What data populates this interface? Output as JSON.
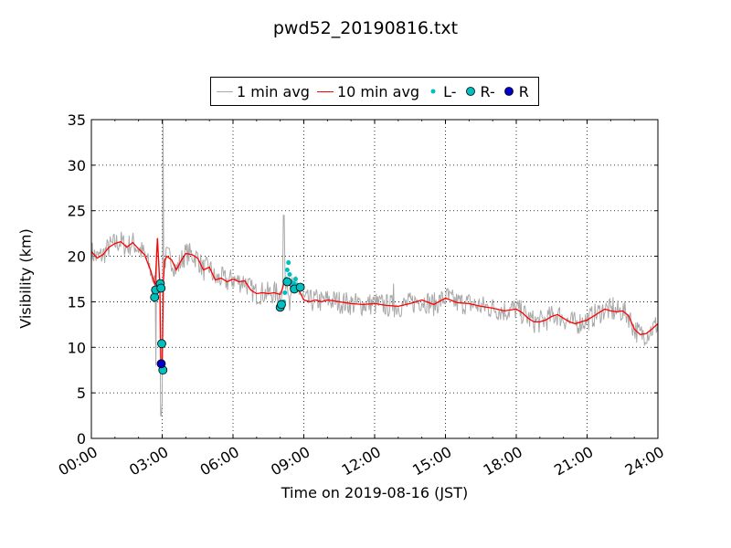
{
  "chart_data": {
    "type": "line",
    "title": "pwd52_20190816.txt",
    "xlabel": "Time on 2019-08-16 (JST)",
    "ylabel": "Visibility (km)",
    "xlim_hours": [
      0,
      24
    ],
    "ylim": [
      0,
      35
    ],
    "x_ticks": [
      "00:00",
      "03:00",
      "06:00",
      "09:00",
      "12:00",
      "15:00",
      "18:00",
      "21:00",
      "24:00"
    ],
    "y_ticks": [
      "0",
      "5",
      "10",
      "15",
      "20",
      "25",
      "30",
      "35"
    ],
    "grid": true,
    "legend_position": "top-center",
    "series": [
      {
        "name": "1 min avg",
        "type": "line",
        "color": "#a9a9a9"
      },
      {
        "name": "10 min avg",
        "type": "line",
        "color": "#ff0000",
        "x_hours": [
          0,
          0.25,
          0.5,
          0.75,
          1,
          1.25,
          1.5,
          1.75,
          2,
          2.25,
          2.5,
          2.7,
          2.8,
          2.9,
          2.95,
          3.0,
          3.05,
          3.1,
          3.2,
          3.4,
          3.6,
          3.8,
          4.0,
          4.25,
          4.5,
          4.75,
          5,
          5.25,
          5.5,
          5.75,
          6,
          6.25,
          6.5,
          6.75,
          7,
          7.25,
          7.5,
          7.75,
          8,
          8.1,
          8.2,
          8.3,
          8.4,
          8.5,
          8.6,
          8.75,
          9,
          9.25,
          9.5,
          9.75,
          10,
          10.5,
          11,
          11.5,
          12,
          12.5,
          13,
          13.5,
          14,
          14.5,
          15,
          15.5,
          16,
          16.5,
          17,
          17.5,
          18,
          18.25,
          18.5,
          18.75,
          19,
          19.25,
          19.5,
          19.75,
          20,
          20.25,
          20.5,
          20.75,
          21,
          21.25,
          21.5,
          21.75,
          22,
          22.25,
          22.5,
          22.75,
          23,
          23.25,
          23.5,
          23.75,
          24
        ],
        "y": [
          20.5,
          19.8,
          20.2,
          21.0,
          21.4,
          21.6,
          21.0,
          21.5,
          20.8,
          20.2,
          18.5,
          16.8,
          22.0,
          17.0,
          7.5,
          7.4,
          17.2,
          19.5,
          20.0,
          19.6,
          18.5,
          19.5,
          20.3,
          20.2,
          19.8,
          18.5,
          18.8,
          17.4,
          17.6,
          17.2,
          17.5,
          17.2,
          17.3,
          16.3,
          15.9,
          16.0,
          15.9,
          16.0,
          15.8,
          16.5,
          17.5,
          17.2,
          16.8,
          16.6,
          16.6,
          16.5,
          15.2,
          15.0,
          15.2,
          15.0,
          15.2,
          15.0,
          14.8,
          14.7,
          14.8,
          14.6,
          14.5,
          14.8,
          15.2,
          14.7,
          15.4,
          14.9,
          14.8,
          14.5,
          14.3,
          14.0,
          14.2,
          13.8,
          13.2,
          12.8,
          12.8,
          13.0,
          13.4,
          13.6,
          13.2,
          12.8,
          12.6,
          12.8,
          13.0,
          13.4,
          13.8,
          14.2,
          14.0,
          13.9,
          14.0,
          13.5,
          12.0,
          11.4,
          11.5,
          12.0,
          12.6
        ]
      },
      {
        "name": "L-",
        "type": "scatter",
        "color": "#00bfbf",
        "x_hours": [
          8.15,
          8.2,
          8.25,
          8.3,
          8.35,
          8.4,
          8.45,
          8.5,
          8.55,
          8.6,
          8.65,
          8.7,
          8.75,
          8.8
        ],
        "y": [
          15.0,
          16.0,
          17.5,
          18.5,
          19.3,
          18.0,
          17.2,
          16.5,
          16.8,
          17.0,
          17.5,
          16.6,
          16.8,
          16.5
        ]
      },
      {
        "name": "R-",
        "type": "scatter",
        "color": "#00bfbf",
        "x_hours": [
          2.68,
          2.72,
          2.92,
          2.95,
          2.98,
          3.03,
          8.0,
          8.05,
          8.3,
          8.6,
          8.85
        ],
        "y": [
          15.5,
          16.3,
          17.0,
          16.5,
          10.4,
          7.5,
          14.4,
          14.7,
          17.2,
          16.4,
          16.6
        ]
      },
      {
        "name": "R",
        "type": "scatter",
        "color": "#0000cd",
        "x_hours": [
          2.96
        ],
        "y": [
          8.2
        ]
      }
    ]
  }
}
